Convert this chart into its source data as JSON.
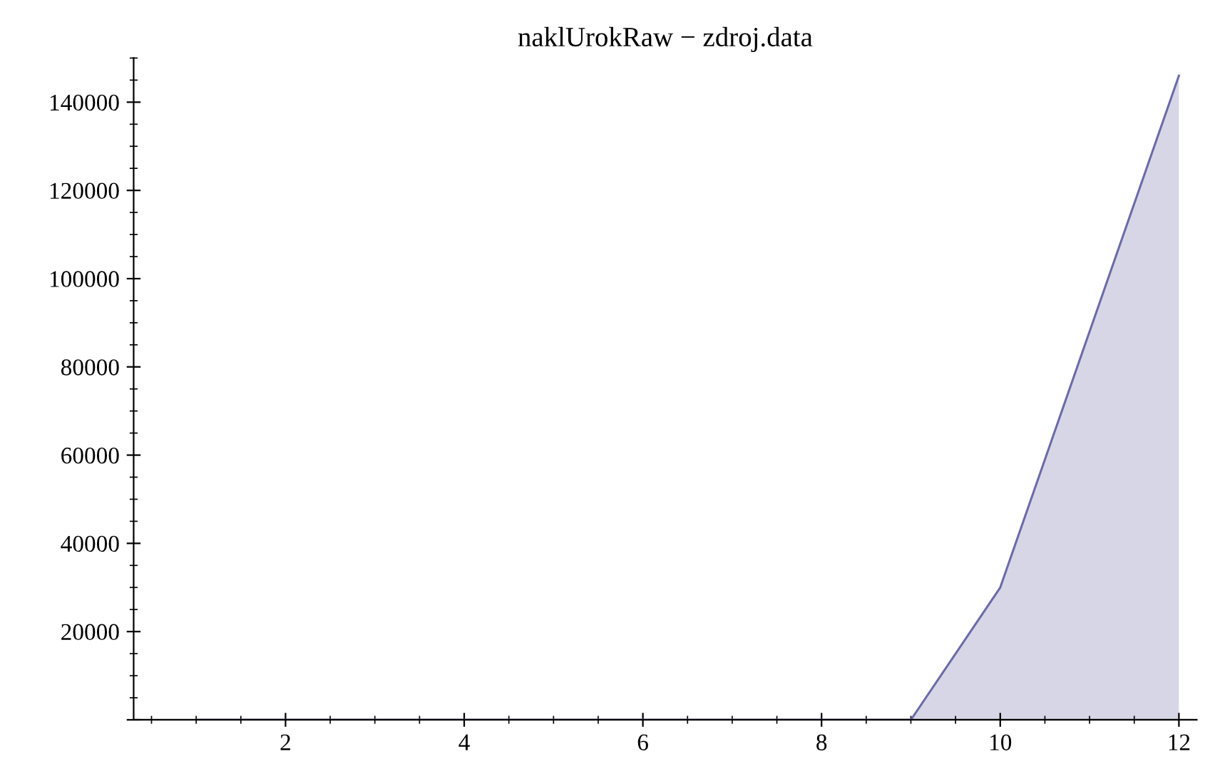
{
  "chart_data": {
    "type": "area",
    "title": "naklUrokRaw − zdroj.data",
    "x": [
      1,
      2,
      3,
      4,
      5,
      6,
      7,
      8,
      9,
      10,
      11,
      12
    ],
    "series": [
      {
        "color": "#6b6ba8",
        "values": [
          0,
          0,
          0,
          0,
          0,
          0,
          0,
          0,
          0,
          30000,
          88000,
          146000
        ]
      }
    ],
    "xlim": [
      0.3,
      12.2
    ],
    "ylim": [
      0,
      150000
    ],
    "xticks": [
      2,
      4,
      6,
      8,
      10,
      12
    ],
    "yticks": [
      {
        "value": 0,
        "label": null
      },
      20000,
      40000,
      60000,
      80000,
      100000,
      120000,
      140000
    ],
    "grid": false,
    "legend": false
  }
}
